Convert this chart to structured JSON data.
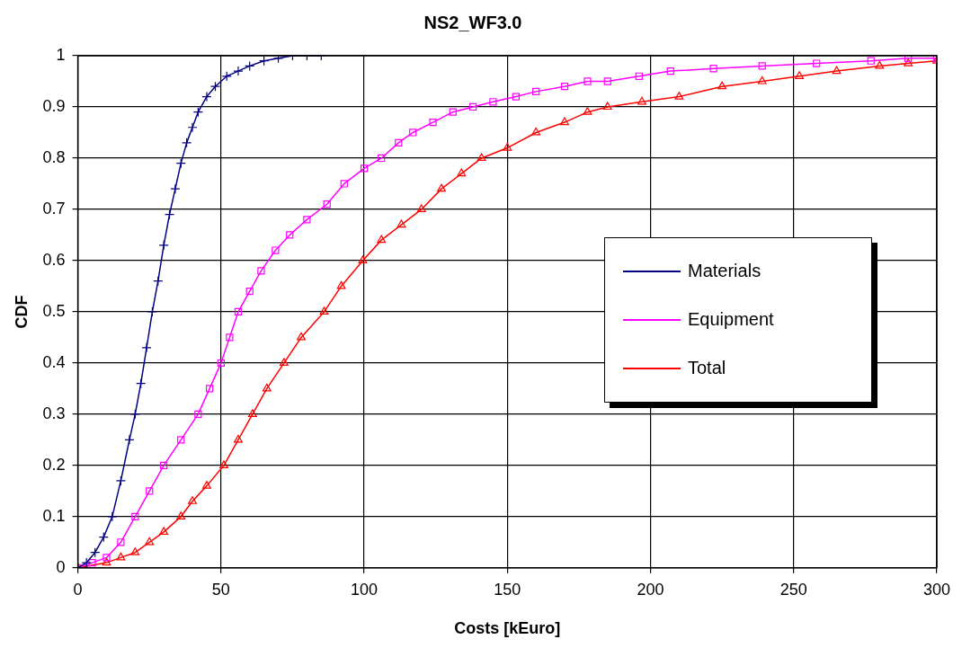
{
  "chart_data": {
    "type": "line",
    "title": "NS2_WF3.0",
    "xlabel": "Costs [kEuro]",
    "ylabel": "CDF",
    "xlim": [
      0,
      300
    ],
    "xticks": [
      0,
      50,
      100,
      150,
      200,
      250,
      300
    ],
    "ylim": [
      0,
      1
    ],
    "yticks": [
      0,
      0.1,
      0.2,
      0.3,
      0.4,
      0.5,
      0.6,
      0.7,
      0.8,
      0.9,
      1
    ],
    "grid": true,
    "legend": "right",
    "line_style": "solid",
    "series": [
      {
        "name": "Materials",
        "color": "#000080",
        "marker": "cross",
        "x": [
          0,
          3,
          6,
          9,
          12,
          15,
          18,
          20,
          22,
          24,
          26,
          28,
          30,
          32,
          34,
          36,
          38,
          40,
          42,
          45,
          48,
          52,
          56,
          60,
          65,
          70,
          75,
          80,
          85
        ],
        "values": [
          0,
          0.01,
          0.03,
          0.06,
          0.1,
          0.17,
          0.25,
          0.3,
          0.36,
          0.43,
          0.5,
          0.56,
          0.63,
          0.69,
          0.74,
          0.79,
          0.83,
          0.86,
          0.89,
          0.92,
          0.94,
          0.96,
          0.97,
          0.98,
          0.99,
          0.995,
          1,
          1,
          1
        ]
      },
      {
        "name": "Equipment",
        "color": "#ff00ff",
        "marker": "square",
        "x": [
          0,
          5,
          10,
          15,
          20,
          25,
          30,
          36,
          42,
          46,
          50,
          53,
          56,
          60,
          64,
          69,
          74,
          80,
          87,
          93,
          100,
          106,
          112,
          117,
          124,
          131,
          138,
          145,
          153,
          160,
          170,
          178,
          185,
          196,
          207,
          222,
          239,
          258,
          277,
          290,
          300
        ],
        "values": [
          0,
          0.01,
          0.02,
          0.05,
          0.1,
          0.15,
          0.2,
          0.25,
          0.3,
          0.35,
          0.4,
          0.45,
          0.5,
          0.54,
          0.58,
          0.62,
          0.65,
          0.68,
          0.71,
          0.75,
          0.78,
          0.8,
          0.83,
          0.85,
          0.87,
          0.89,
          0.9,
          0.91,
          0.92,
          0.93,
          0.94,
          0.95,
          0.95,
          0.96,
          0.97,
          0.975,
          0.98,
          0.985,
          0.99,
          0.995,
          0.995
        ]
      },
      {
        "name": "Total",
        "color": "#ff0000",
        "marker": "triangle",
        "x": [
          0,
          10,
          15,
          20,
          25,
          30,
          36,
          40,
          45,
          51,
          56,
          61,
          66,
          72,
          78,
          86,
          92,
          99.5,
          106,
          113,
          120,
          127,
          134,
          141,
          150,
          160,
          170,
          178,
          185,
          197,
          210,
          225,
          239,
          252,
          265,
          280,
          290,
          300
        ],
        "values": [
          0,
          0.01,
          0.02,
          0.03,
          0.05,
          0.07,
          0.1,
          0.13,
          0.16,
          0.2,
          0.25,
          0.3,
          0.35,
          0.4,
          0.45,
          0.5,
          0.55,
          0.6,
          0.64,
          0.67,
          0.7,
          0.74,
          0.77,
          0.8,
          0.82,
          0.85,
          0.87,
          0.89,
          0.9,
          0.91,
          0.92,
          0.94,
          0.95,
          0.96,
          0.97,
          0.98,
          0.985,
          0.99
        ]
      }
    ]
  }
}
